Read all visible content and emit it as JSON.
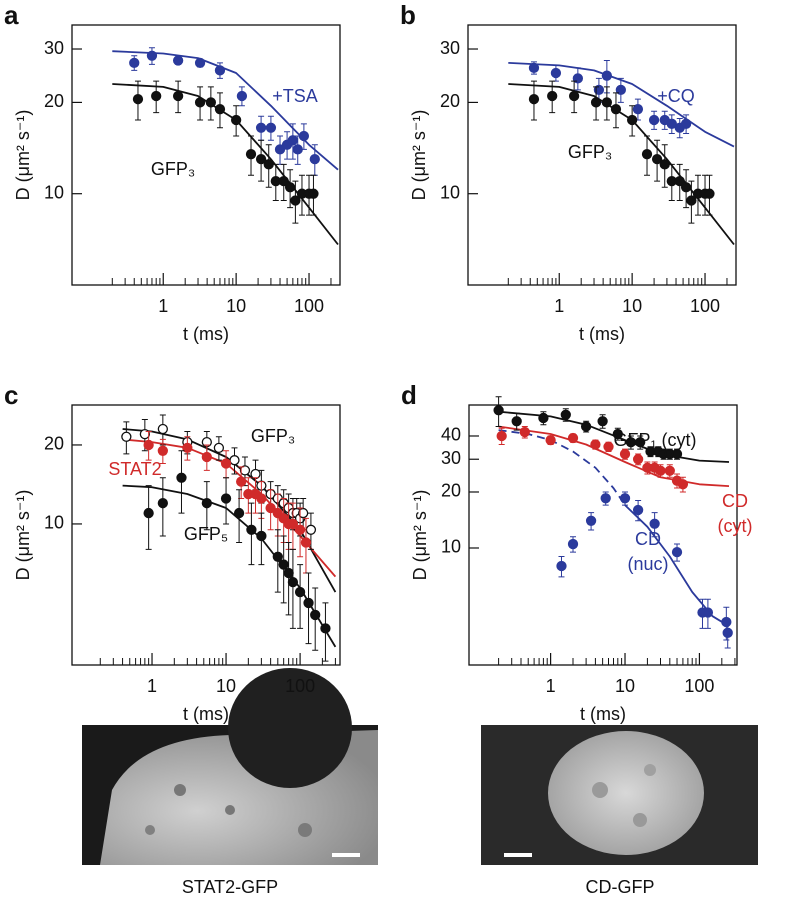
{
  "chart_data": [
    {
      "type": "scatter",
      "panel": "a",
      "xlabel": "t (ms)",
      "ylabel": "D (μm² s⁻¹)",
      "xlog": true,
      "ylog": true,
      "xlim": [
        0.056,
        266
      ],
      "ylim": [
        5,
        36
      ],
      "xticks": [
        1,
        10,
        100
      ],
      "yticks": [
        10,
        20,
        30
      ],
      "xminor": [
        0.2,
        0.3,
        0.4,
        0.5,
        0.6,
        0.7,
        0.8,
        0.9,
        2,
        3,
        4,
        5,
        6,
        7,
        8,
        9,
        20,
        30,
        40,
        50,
        60,
        70,
        80,
        90,
        200
      ],
      "series": [
        {
          "name": [
            "+TSA"
          ],
          "color": "#2b3a9c",
          "marker": "filled",
          "x": [
            0.4,
            0.7,
            1.6,
            3.2,
            6,
            12,
            22,
            30,
            40,
            50,
            60,
            70,
            85,
            120
          ],
          "values": [
            27,
            28.5,
            27.5,
            27,
            25.5,
            21,
            16.5,
            16.5,
            14,
            14.5,
            15,
            14,
            15.5,
            13
          ],
          "errors": [
            1.5,
            1.8,
            0.8,
            0.8,
            1.5,
            1.5,
            1.5,
            1.5,
            1.5,
            1.5,
            2,
            1.5,
            1.5,
            1.5
          ]
        },
        {
          "name": [
            "GFP₃"
          ],
          "color": "#111111",
          "marker": "filled",
          "x": [
            0.45,
            0.8,
            1.6,
            3.2,
            4.5,
            6,
            10,
            16,
            22,
            28,
            35,
            45,
            55,
            65,
            80,
            100,
            115
          ],
          "values": [
            20.5,
            21,
            21,
            20,
            20,
            19,
            17.5,
            13.5,
            13,
            12.5,
            11,
            11,
            10.5,
            9.5,
            10,
            10,
            10
          ],
          "errors": [
            3,
            2.5,
            2.5,
            2.5,
            2.5,
            2.5,
            2,
            2,
            2,
            2,
            1.5,
            1.5,
            1.5,
            1.5,
            1.5,
            1.5,
            1.5
          ]
        }
      ],
      "fits": [
        {
          "color": "#2b3a9c",
          "dashed": false,
          "x": [
            0.2,
            1,
            3,
            10,
            30,
            100,
            250
          ],
          "values": [
            29.5,
            29,
            28,
            25,
            19.5,
            14.5,
            12
          ]
        },
        {
          "color": "#111111",
          "dashed": false,
          "x": [
            0.2,
            1,
            3,
            10,
            30,
            100,
            250
          ],
          "values": [
            23,
            22.5,
            21,
            17.5,
            13,
            9,
            6.8
          ]
        }
      ]
    },
    {
      "type": "scatter",
      "panel": "b",
      "xlabel": "t (ms)",
      "ylabel": "D (μm² s⁻¹)",
      "xlog": true,
      "ylog": true,
      "xlim": [
        0.056,
        266
      ],
      "ylim": [
        5,
        36
      ],
      "xticks": [
        1,
        10,
        100
      ],
      "yticks": [
        10,
        20,
        30
      ],
      "xminor": [
        0.2,
        0.3,
        0.4,
        0.5,
        0.6,
        0.7,
        0.8,
        0.9,
        2,
        3,
        4,
        5,
        6,
        7,
        8,
        9,
        20,
        30,
        40,
        50,
        60,
        70,
        80,
        90,
        200
      ],
      "series": [
        {
          "name": [
            "+CQ"
          ],
          "color": "#2b3a9c",
          "marker": "filled",
          "x": [
            0.45,
            0.9,
            1.8,
            3.5,
            4.5,
            7,
            12,
            20,
            28,
            35,
            45,
            55
          ],
          "values": [
            26,
            25,
            24,
            22,
            24.5,
            22,
            19,
            17.5,
            17.5,
            17,
            16.5,
            17
          ],
          "errors": [
            1.2,
            1.5,
            2,
            2,
            3,
            2,
            1.5,
            1.2,
            1.2,
            1.2,
            1.2,
            1.2
          ]
        },
        {
          "name": [
            "GFP₃"
          ],
          "color": "#111111",
          "marker": "filled",
          "x": [
            0.45,
            0.8,
            1.6,
            3.2,
            4.5,
            6,
            10,
            16,
            22,
            28,
            35,
            45,
            55,
            65,
            80,
            100,
            115
          ],
          "values": [
            20.5,
            21,
            21,
            20,
            20,
            19,
            17.5,
            13.5,
            13,
            12.5,
            11,
            11,
            10.5,
            9.5,
            10,
            10,
            10
          ],
          "errors": [
            3,
            2.5,
            2.5,
            2.5,
            2.5,
            2.5,
            2,
            2,
            2,
            2,
            1.5,
            1.5,
            1.5,
            1.5,
            1.5,
            1.5,
            1.5
          ]
        }
      ],
      "fits": [
        {
          "color": "#2b3a9c",
          "dashed": false,
          "x": [
            0.2,
            1,
            3,
            10,
            30,
            100,
            250
          ],
          "values": [
            27,
            26.5,
            25.5,
            23,
            19.5,
            16,
            14.3
          ]
        },
        {
          "color": "#111111",
          "dashed": false,
          "x": [
            0.2,
            1,
            3,
            10,
            30,
            100,
            250
          ],
          "values": [
            23,
            22.5,
            21,
            17.5,
            13,
            9,
            6.8
          ]
        }
      ]
    },
    {
      "type": "scatter",
      "panel": "c",
      "xlabel": "t (ms)",
      "ylabel": "D (μm² s⁻¹)",
      "xlog": true,
      "ylog": true,
      "xlim": [
        0.083,
        346
      ],
      "ylim": [
        2.9,
        28.4
      ],
      "xticks": [
        1,
        10,
        100
      ],
      "yticks": [
        10,
        20
      ],
      "xminor": [
        0.2,
        0.3,
        0.4,
        0.5,
        0.6,
        0.7,
        0.8,
        0.9,
        2,
        3,
        4,
        5,
        6,
        7,
        8,
        9,
        20,
        30,
        40,
        50,
        60,
        70,
        80,
        90,
        200,
        300
      ],
      "series": [
        {
          "name": [
            "GFP₃"
          ],
          "color": "#111111",
          "marker": "open",
          "x": [
            0.45,
            0.8,
            1.4,
            3,
            5.5,
            8,
            13,
            18,
            25,
            30,
            40,
            50,
            60,
            70,
            80,
            90,
            100,
            110,
            140
          ],
          "values": [
            21.5,
            22,
            23,
            20.5,
            20.5,
            19.5,
            17.5,
            16,
            15.5,
            14,
            13,
            12.5,
            12,
            11.5,
            11,
            11,
            10.5,
            11,
            9.5
          ],
          "errors": [
            3,
            3,
            3,
            2,
            2,
            2,
            2,
            2,
            2,
            2,
            1.5,
            1.5,
            1.5,
            1.5,
            1.5,
            1.5,
            1.5,
            1.5,
            1.5
          ]
        },
        {
          "name": [
            "STAT2"
          ],
          "color": "#d02a2a",
          "marker": "filled",
          "x": [
            0.9,
            1.4,
            3,
            5.5,
            10,
            16,
            20,
            25,
            30,
            40,
            50,
            60,
            70,
            80,
            100,
            120
          ],
          "values": [
            20,
            19,
            19.5,
            18,
            17,
            14.5,
            13,
            13,
            12.5,
            11.5,
            11,
            10.5,
            10,
            10,
            9.5,
            8.5
          ],
          "errors": [
            2.5,
            2,
            2,
            2,
            2,
            2,
            2,
            2,
            2,
            2,
            2,
            2,
            2,
            2,
            2,
            2
          ]
        },
        {
          "name": [
            "GFP₅"
          ],
          "color": "#111111",
          "marker": "filled",
          "x": [
            0.9,
            1.4,
            2.5,
            5.5,
            10,
            15,
            22,
            30,
            50,
            60,
            70,
            80,
            100,
            130,
            160,
            220
          ],
          "values": [
            11,
            12,
            15,
            12,
            12.5,
            11,
            9.5,
            9,
            7.5,
            7,
            6.5,
            6,
            5.5,
            5,
            4.5,
            4
          ],
          "errors": [
            3,
            3,
            4,
            2.5,
            2.5,
            2.5,
            2.5,
            2,
            2,
            2,
            2,
            2,
            1.5,
            1.5,
            1.2,
            1
          ]
        }
      ],
      "fits": [
        {
          "color": "#111111",
          "dashed": false,
          "x": [
            0.4,
            1,
            3,
            10,
            30,
            100,
            300
          ],
          "values": [
            23,
            22.5,
            21,
            18,
            14,
            9.5,
            5.5
          ]
        },
        {
          "color": "#d02a2a",
          "dashed": false,
          "x": [
            0.4,
            1,
            3,
            10,
            30,
            100,
            300
          ],
          "values": [
            21,
            20.5,
            19.5,
            17,
            13,
            9,
            6.3
          ]
        },
        {
          "color": "#111111",
          "dashed": false,
          "x": [
            0.4,
            1,
            3,
            10,
            30,
            100,
            300
          ],
          "values": [
            14,
            13.8,
            13,
            11.5,
            8.8,
            5.7,
            3.4
          ]
        }
      ]
    },
    {
      "type": "scatter",
      "panel": "d",
      "xlabel": "t (ms)",
      "ylabel": "D (μm² s⁻¹)",
      "xlog": true,
      "ylog": true,
      "xlim": [
        0.08,
        320
      ],
      "ylim": [
        2.35,
        58.7
      ],
      "xticks": [
        1,
        10,
        100
      ],
      "yticks": [
        10,
        20,
        30,
        40
      ],
      "xminor": [
        0.2,
        0.3,
        0.4,
        0.5,
        0.6,
        0.7,
        0.8,
        0.9,
        2,
        3,
        4,
        5,
        6,
        7,
        8,
        9,
        20,
        30,
        40,
        50,
        60,
        70,
        80,
        90,
        200,
        300
      ],
      "series": [
        {
          "name": [
            "GFP₁ (cyt)"
          ],
          "color": "#111111",
          "marker": "filled",
          "x": [
            0.2,
            0.35,
            0.8,
            1.6,
            3,
            5,
            8,
            12,
            16,
            22,
            28,
            33,
            40,
            50
          ],
          "values": [
            55,
            48,
            50,
            52,
            45,
            48,
            41,
            37,
            37,
            33,
            33,
            32,
            32,
            32
          ],
          "errors": [
            10,
            5,
            4,
            4,
            3,
            4,
            3,
            3,
            3,
            2,
            2,
            2,
            2,
            2
          ]
        },
        {
          "name": [
            "CD",
            "(cyt)"
          ],
          "color": "#d02a2a",
          "marker": "filled",
          "x": [
            0.22,
            0.45,
            1,
            2,
            4,
            6,
            10,
            15,
            20,
            25,
            30,
            40,
            50,
            60
          ],
          "values": [
            40,
            42,
            38,
            39,
            36,
            35,
            32,
            30,
            27,
            27,
            26,
            26,
            23,
            22
          ],
          "errors": [
            4,
            3,
            2,
            2,
            2,
            2,
            2,
            2,
            2,
            2,
            2,
            2,
            2,
            2
          ]
        },
        {
          "name": [
            "CD",
            "(nuc)"
          ],
          "color": "#2b3a9c",
          "marker": "filled",
          "x": [
            1.4,
            2,
            3.5,
            5.5,
            10,
            15,
            25,
            50,
            110,
            130,
            230,
            240
          ],
          "values": [
            8,
            10.5,
            14,
            18.5,
            18.5,
            16,
            13.5,
            9.5,
            4.5,
            4.5,
            4,
            3.5
          ],
          "errors": [
            1,
            1,
            1.5,
            1.5,
            1.5,
            2,
            2,
            1,
            0.8,
            0.8,
            0.8,
            0.6
          ]
        }
      ],
      "fits": [
        {
          "color": "#111111",
          "dashed": false,
          "x": [
            0.2,
            1,
            3,
            10,
            30,
            100,
            250
          ],
          "values": [
            54,
            51,
            46,
            38,
            32,
            29.5,
            29
          ]
        },
        {
          "color": "#d02a2a",
          "dashed": false,
          "x": [
            0.2,
            1,
            3,
            10,
            30,
            100,
            250
          ],
          "values": [
            45,
            41,
            36,
            29,
            24,
            22,
            21.5
          ]
        },
        {
          "color": "#2b3a9c",
          "dashed": false,
          "x": [
            10,
            20,
            40,
            80,
            150,
            250
          ],
          "values": [
            17,
            13,
            9,
            5.8,
            4.3,
            3.8
          ]
        },
        {
          "color": "#2b3a9c",
          "dashed": true,
          "x": [
            0.2,
            0.5,
            1,
            2,
            4,
            7,
            10
          ],
          "values": [
            43,
            41,
            38,
            33,
            27,
            21,
            17
          ]
        }
      ]
    }
  ],
  "images": [
    {
      "caption": "STAT2-GFP"
    },
    {
      "caption": "CD-GFP"
    }
  ]
}
